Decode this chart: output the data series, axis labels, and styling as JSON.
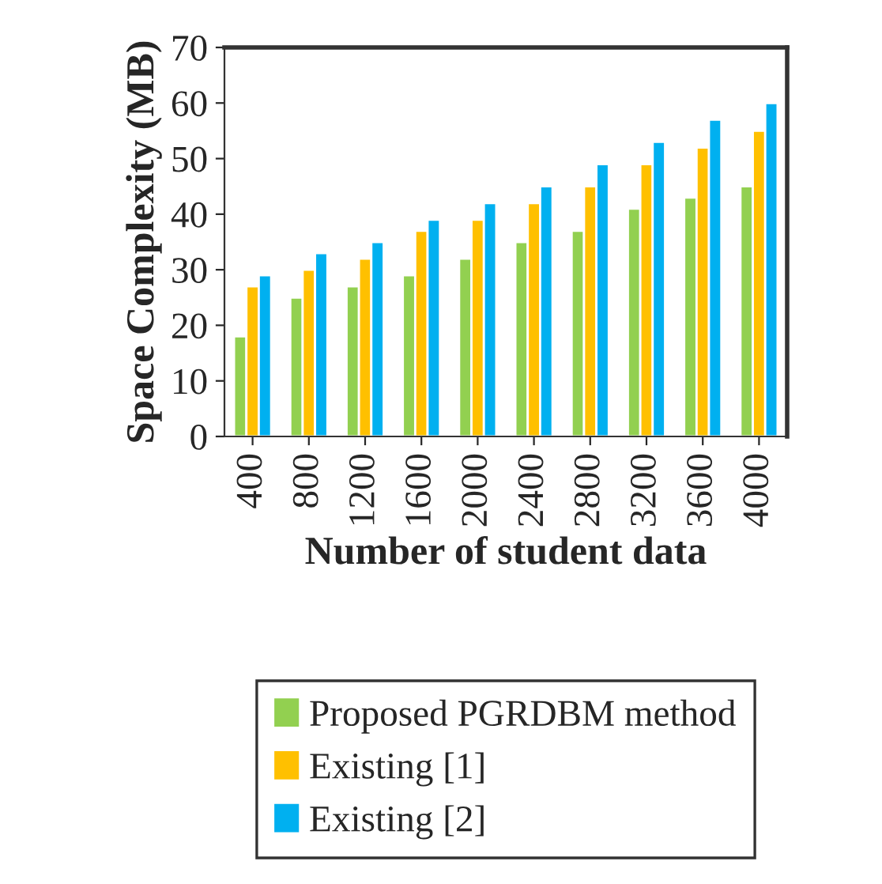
{
  "chart_data": {
    "type": "bar",
    "xlabel": "Number of student data",
    "ylabel": "Space Complexity (MB)",
    "categories": [
      "400",
      "800",
      "1200",
      "1600",
      "2000",
      "2400",
      "2800",
      "3200",
      "3600",
      "4000"
    ],
    "series": [
      {
        "name": "Proposed PGRDBM method",
        "color": "#92d050",
        "values": [
          18,
          25,
          27,
          29,
          32,
          35,
          37,
          41,
          43,
          45
        ]
      },
      {
        "name": "Existing [1]",
        "color": "#ffc000",
        "values": [
          27,
          30,
          32,
          37,
          39,
          42,
          45,
          49,
          52,
          55
        ]
      },
      {
        "name": "Existing [2]",
        "color": "#00b0f0",
        "values": [
          29,
          33,
          35,
          39,
          42,
          45,
          49,
          53,
          57,
          60
        ]
      }
    ],
    "ylim": [
      0,
      70
    ],
    "yticks": [
      0,
      10,
      20,
      30,
      40,
      50,
      60,
      70
    ],
    "grid": false,
    "legend": "bottom"
  }
}
